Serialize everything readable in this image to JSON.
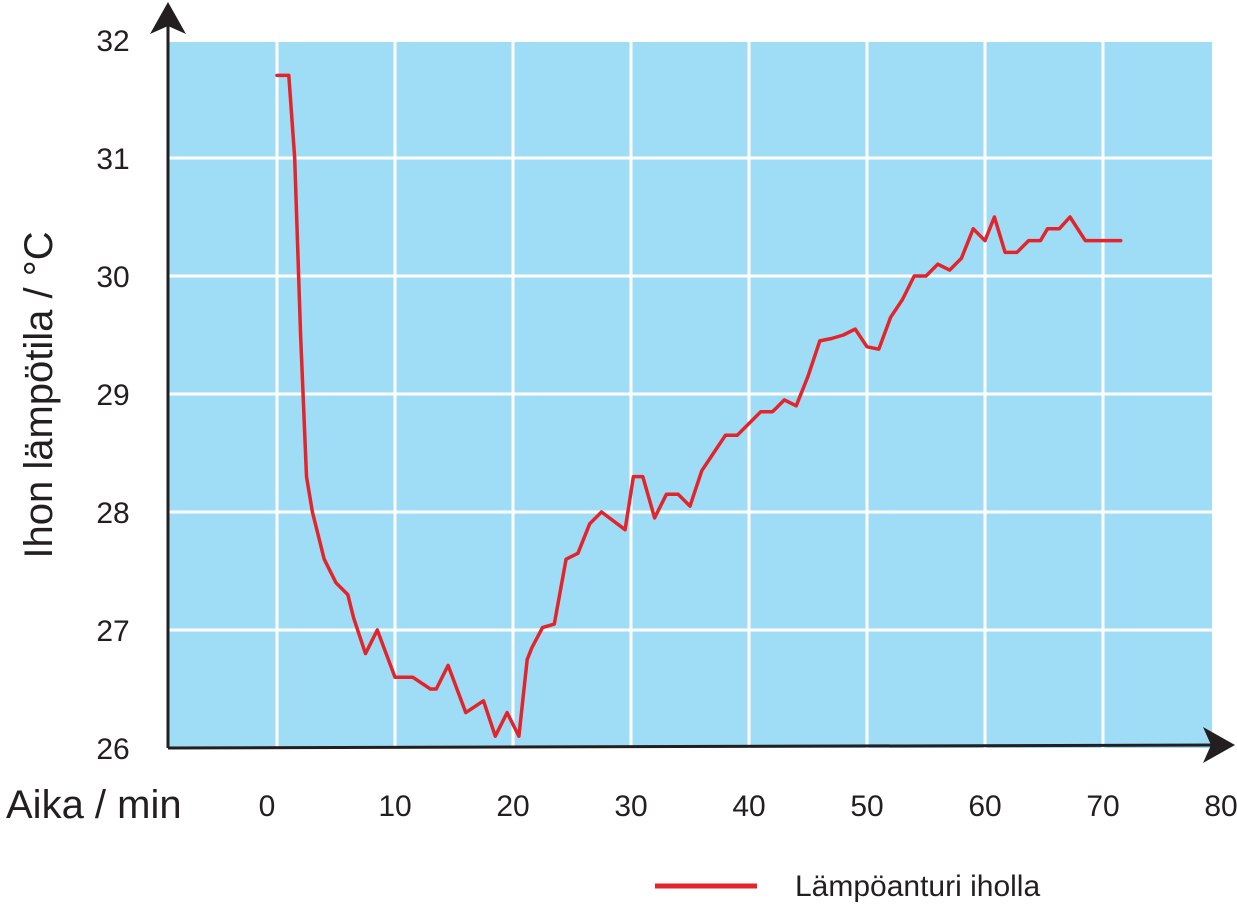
{
  "chart_data": {
    "type": "line",
    "xlabel": "Aika / min",
    "ylabel": "Ihon lämpötila / °C",
    "xlim": [
      -9,
      80
    ],
    "ylim": [
      26,
      32
    ],
    "x_ticks": [
      0,
      10,
      20,
      30,
      40,
      50,
      60,
      70,
      80
    ],
    "y_ticks": [
      26,
      27,
      28,
      29,
      30,
      31,
      32
    ],
    "grid": true,
    "legend_position": "bottom-right",
    "colors": {
      "plot_background": "#9fdcf6",
      "grid": "#ffffff",
      "axis": "#231f20",
      "series": "#e3242b"
    },
    "series": [
      {
        "name": "Lämpöanturi iholla",
        "x": [
          0,
          1,
          1.5,
          2,
          2.5,
          3,
          3.5,
          4,
          5,
          6,
          6.5,
          7.5,
          8.5,
          10,
          10.5,
          11.5,
          13,
          13.5,
          14.5,
          16,
          17.5,
          18.5,
          19.5,
          20.5,
          21.2,
          21.6,
          22.5,
          23.5,
          24.5,
          25.5,
          26.5,
          27.5,
          29.5,
          30.2,
          31,
          32,
          33,
          34,
          35,
          36,
          37,
          38,
          39,
          40,
          41,
          42,
          43,
          44,
          45,
          46,
          47,
          48,
          49,
          50,
          51,
          52,
          53,
          54,
          55,
          56,
          57,
          58,
          59,
          60,
          60.8,
          61.7,
          62.7,
          63.7,
          64.7,
          65.3,
          66.3,
          67.2,
          68.5,
          69.5,
          70.5,
          71.5
        ],
        "y": [
          31.7,
          31.7,
          31.0,
          29.5,
          28.3,
          28.0,
          27.8,
          27.6,
          27.4,
          27.3,
          27.1,
          26.8,
          27.0,
          26.6,
          26.6,
          26.6,
          26.5,
          26.5,
          26.7,
          26.3,
          26.4,
          26.1,
          26.3,
          26.1,
          26.75,
          26.85,
          27.02,
          27.05,
          27.6,
          27.65,
          27.9,
          28.0,
          27.85,
          28.3,
          28.3,
          27.95,
          28.15,
          28.15,
          28.05,
          28.35,
          28.5,
          28.65,
          28.65,
          28.75,
          28.85,
          28.85,
          28.95,
          28.9,
          29.15,
          29.45,
          29.47,
          29.5,
          29.55,
          29.4,
          29.38,
          29.65,
          29.8,
          30.0,
          30.0,
          30.1,
          30.05,
          30.15,
          30.4,
          30.3,
          30.5,
          30.2,
          30.2,
          30.3,
          30.3,
          30.4,
          30.4,
          30.5,
          30.3,
          30.3,
          30.3,
          30.3
        ]
      }
    ]
  }
}
